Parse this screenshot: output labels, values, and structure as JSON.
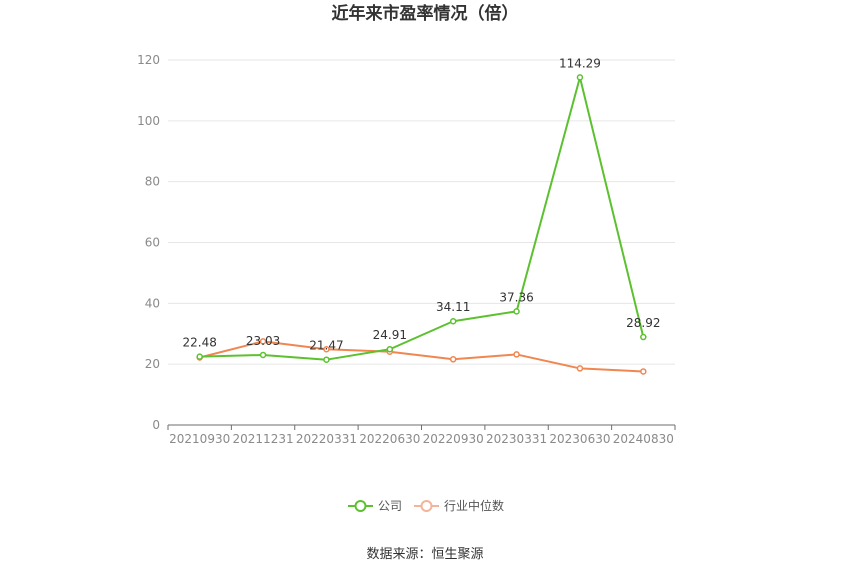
{
  "chart_data": {
    "type": "line",
    "title": "近年来市盈率情况（倍）",
    "categories": [
      "20210930",
      "20211231",
      "20220331",
      "20220630",
      "20220930",
      "20230331",
      "20230630",
      "20240830"
    ],
    "series": [
      {
        "name": "公司",
        "color": "#5cc12e",
        "values": [
          22.48,
          23.03,
          21.47,
          24.91,
          34.11,
          37.36,
          114.29,
          28.92
        ],
        "labels": [
          "22.48",
          "23.03",
          "21.47",
          "24.91",
          "34.11",
          "37.36",
          "114.29",
          "28.92"
        ]
      },
      {
        "name": "行业中位数",
        "color": "#f08650",
        "values": [
          22.2,
          27.5,
          24.9,
          24.1,
          21.6,
          23.2,
          18.6,
          17.6
        ]
      }
    ],
    "yticks": [
      0,
      20,
      40,
      60,
      80,
      100,
      120
    ],
    "ylim": [
      0,
      120
    ],
    "grid": true,
    "legend_position": "bottom-center",
    "source": "数据来源：恒生聚源"
  }
}
